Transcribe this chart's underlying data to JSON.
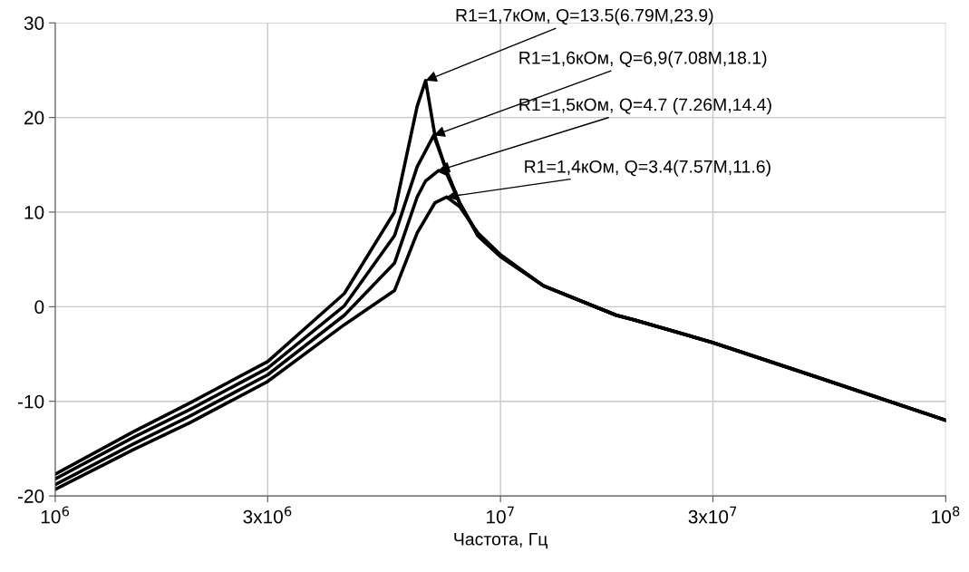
{
  "chart_data": {
    "type": "line",
    "xlabel": "Частота, Гц",
    "log": "x",
    "grid": true,
    "marker": "none",
    "line_style": "solid",
    "xlim": [
      1000000,
      100000000
    ],
    "xticks": [
      {
        "value": 1000000,
        "label": "10$^{6}$"
      },
      {
        "value": 3000000,
        "label": "3x10$^{6}$"
      },
      {
        "value": 10000000,
        "label": "10$^{7}$"
      },
      {
        "value": 30000000,
        "label": "3x10$^{7}$"
      },
      {
        "value": 100000000,
        "label": "10$^{8}$"
      }
    ],
    "ylim": [
      -20,
      30
    ],
    "yticks": [
      -20,
      -10,
      0,
      10,
      20,
      30
    ],
    "series": [
      {
        "color": "#000000",
        "x": [
          1000000,
          1500000,
          2000000,
          3000000,
          4460000,
          5780000,
          6500000,
          6790000,
          7130000,
          7580000,
          8090000,
          8900000,
          10000000,
          12500000,
          18200000,
          20000000,
          30000000,
          51000000,
          100000000
        ],
        "values": [
          -17.7,
          -13.2,
          -10.2,
          -5.8,
          1.4,
          10.0,
          21.2,
          23.9,
          18.0,
          14.2,
          11.0,
          7.5,
          5.3,
          2.2,
          -0.9,
          -1.4,
          -3.8,
          -7.4,
          -12.0
        ]
      },
      {
        "color": "#000000",
        "x": [
          1000000,
          1500000,
          2000000,
          3000000,
          4460000,
          5780000,
          6500000,
          7080000,
          7580000,
          8090000,
          8900000,
          10000000,
          12500000,
          18200000,
          20000000,
          30000000,
          51000000,
          100000000
        ],
        "values": [
          -18.2,
          -13.8,
          -10.9,
          -6.5,
          0.1,
          7.5,
          14.8,
          18.1,
          14.3,
          11.0,
          7.5,
          5.3,
          2.2,
          -0.9,
          -1.4,
          -3.8,
          -7.4,
          -12.0
        ]
      },
      {
        "color": "#000000",
        "x": [
          1000000,
          1500000,
          2000000,
          3000000,
          4460000,
          5780000,
          6500000,
          6790000,
          7260000,
          7580000,
          8090000,
          8900000,
          10000000,
          12500000,
          18200000,
          20000000,
          30000000,
          51000000,
          100000000
        ],
        "values": [
          -18.8,
          -14.5,
          -11.6,
          -7.2,
          -0.9,
          4.6,
          11.6,
          13.3,
          14.4,
          14.0,
          11.0,
          7.6,
          5.4,
          2.2,
          -0.9,
          -1.4,
          -3.8,
          -7.4,
          -12.0
        ]
      },
      {
        "color": "#000000",
        "x": [
          1000000,
          1500000,
          2000000,
          3000000,
          4460000,
          5780000,
          6500000,
          7130000,
          7570000,
          8090000,
          8900000,
          10000000,
          12500000,
          18200000,
          20000000,
          30000000,
          51000000,
          100000000
        ],
        "values": [
          -19.3,
          -15.1,
          -12.3,
          -7.9,
          -1.9,
          1.7,
          7.8,
          11.0,
          11.6,
          10.6,
          7.8,
          5.5,
          2.2,
          -0.9,
          -1.4,
          -3.8,
          -7.4,
          -12.0
        ]
      }
    ],
    "annotations": [
      {
        "text": "R1=1,7кОм, Q=13.5(6.79M,23.9)",
        "x": 6790000,
        "y": 23.9
      },
      {
        "text": "R1=1,6кОм, Q=6,9(7.08M,18.1)",
        "x": 7080000,
        "y": 18.1
      },
      {
        "text": "R1=1,5кОм, Q=4.7 (7.26M,14.4)",
        "x": 7260000,
        "y": 14.4
      },
      {
        "text": "R1=1,4кОм, Q=3.4(7.57M,11.6)",
        "x": 7570000,
        "y": 11.6
      }
    ]
  }
}
